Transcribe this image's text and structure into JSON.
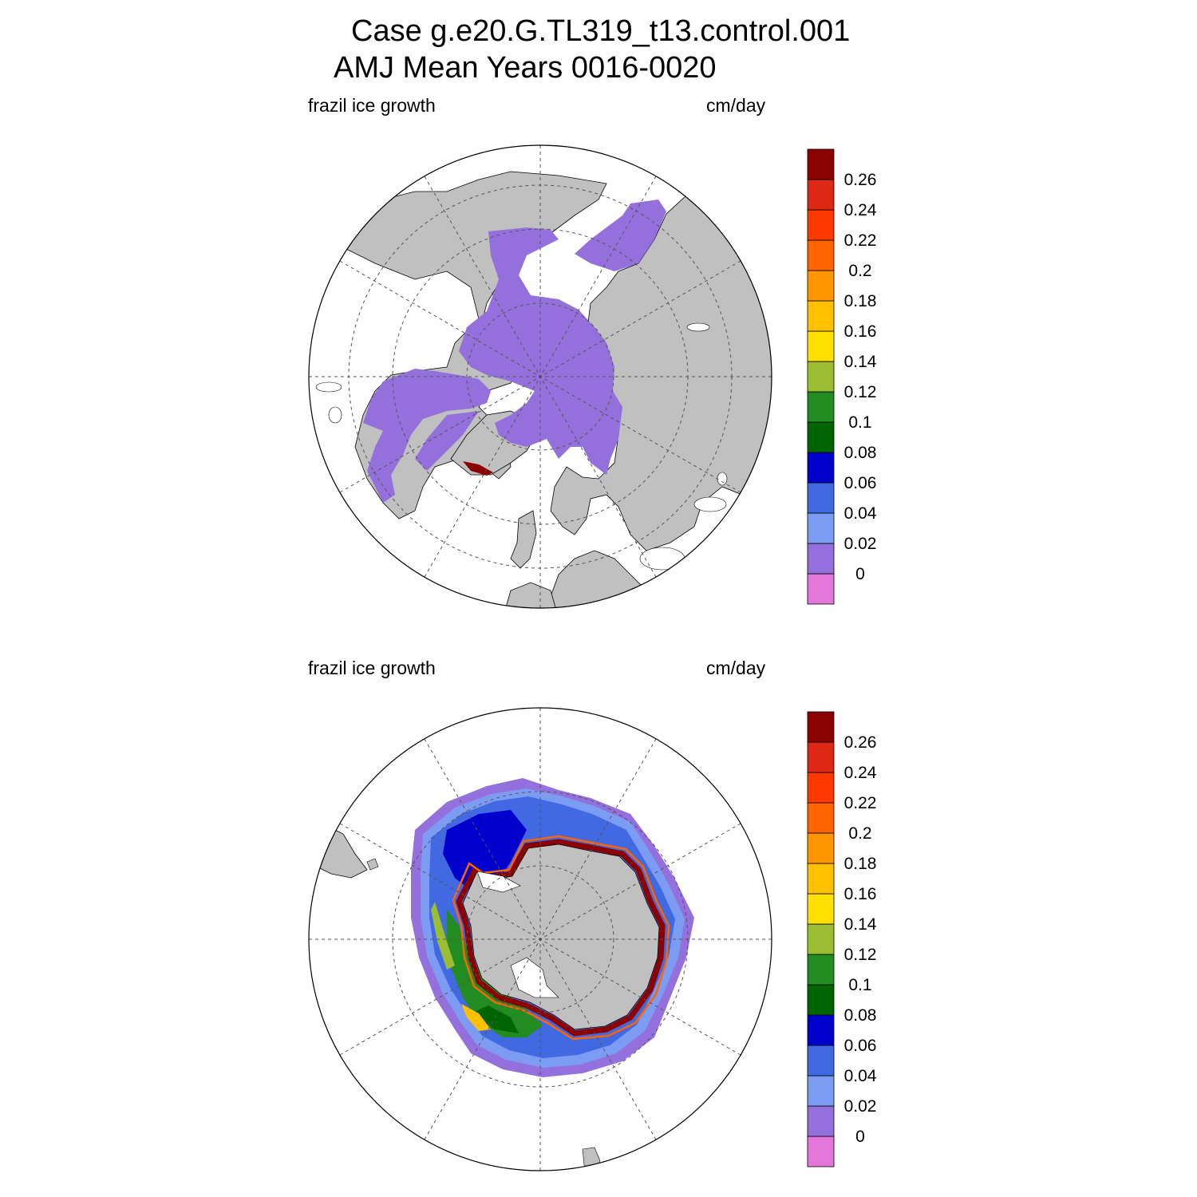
{
  "title": {
    "line1": "Case g.e20.G.TL319_t13.control.001",
    "line2": "AMJ Mean   Years 0016-0020"
  },
  "colors": {
    "land": "#c0c0c0",
    "ocean": "#ffffff",
    "ice_base": "#9370db",
    "palette": [
      "#e377d9",
      "#9370db",
      "#7b9cf2",
      "#4169e1",
      "#0000cd",
      "#006400",
      "#228b22",
      "#9abd31",
      "#ffe000",
      "#ffc000",
      "#ff9500",
      "#ff6400",
      "#ff3800",
      "#dc2814",
      "#8b0000"
    ]
  },
  "panels": [
    {
      "id": "north",
      "left_label": "frazil ice growth",
      "right_label": "cm/day",
      "hemisphere": "Northern Hemisphere polar stereographic"
    },
    {
      "id": "south",
      "left_label": "frazil ice growth",
      "right_label": "cm/day",
      "hemisphere": "Southern Hemisphere polar stereographic"
    }
  ],
  "colorbar": {
    "labels": [
      "0",
      "0.02",
      "0.04",
      "0.06",
      "0.08",
      "0.1",
      "0.12",
      "0.14",
      "0.16",
      "0.18",
      "0.2",
      "0.22",
      "0.24",
      "0.26"
    ]
  }
}
